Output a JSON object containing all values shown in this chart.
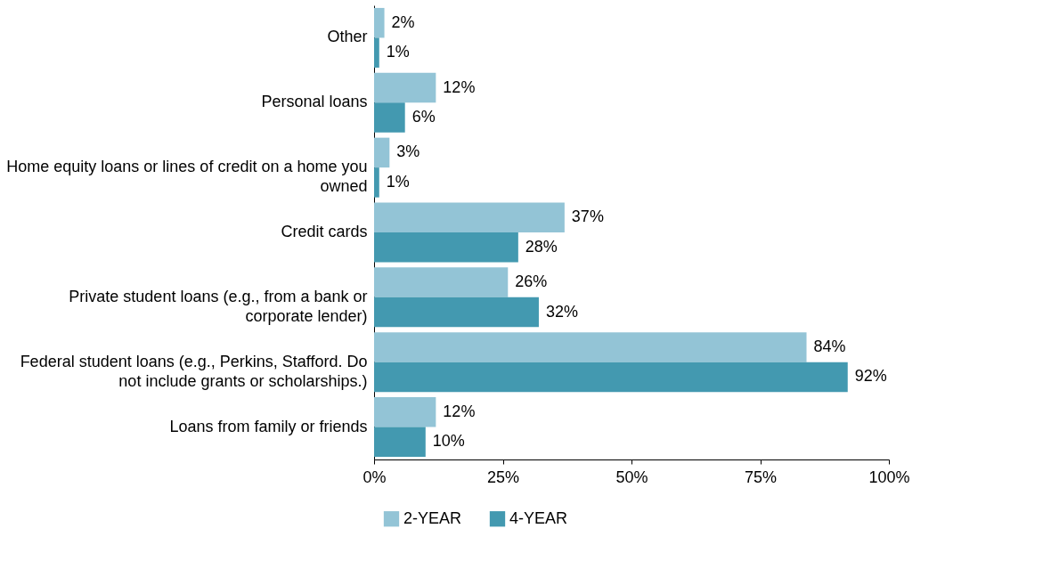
{
  "chart_data": {
    "type": "bar",
    "orientation": "horizontal",
    "categories": [
      "Other",
      "Personal loans",
      "Home equity loans or lines of credit on a home you owned",
      "Credit cards",
      "Private student loans (e.g., from a bank or corporate lender)",
      "Federal student loans (e.g., Perkins, Stafford. Do not include grants or scholarships.)",
      "Loans from family or friends"
    ],
    "series": [
      {
        "name": "2-YEAR",
        "color": "#93c4d6",
        "values": [
          2,
          12,
          3,
          37,
          26,
          84,
          12
        ],
        "value_labels": [
          "2%",
          "12%",
          "3%",
          "37%",
          "26%",
          "84%",
          "12%"
        ]
      },
      {
        "name": "4-YEAR",
        "color": "#4399b0",
        "values": [
          1,
          6,
          1,
          28,
          32,
          92,
          10
        ],
        "value_labels": [
          "1%",
          "6%",
          "1%",
          "28%",
          "32%",
          "92%",
          "10%"
        ]
      }
    ],
    "xlim": [
      0,
      100
    ],
    "xticks": [
      {
        "value": 0,
        "label": "0%"
      },
      {
        "value": 25,
        "label": "25%"
      },
      {
        "value": 50,
        "label": "50%"
      },
      {
        "value": 75,
        "label": "75%"
      },
      {
        "value": 100,
        "label": "100%"
      }
    ],
    "grid": false,
    "legend": "bottom"
  }
}
